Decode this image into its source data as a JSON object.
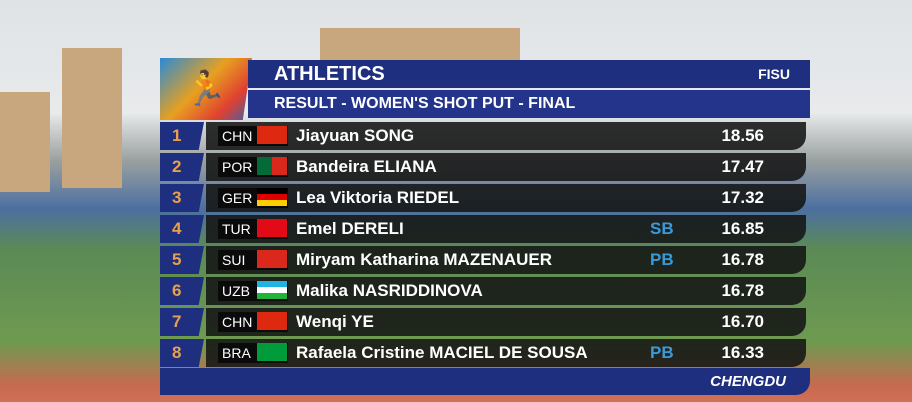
{
  "header": {
    "title": "ATHLETICS",
    "brand": "FISU",
    "subtitle": "RESULT - WOMEN'S SHOT PUT - FINAL",
    "logo_icon": "runner-icon"
  },
  "results": [
    {
      "rank": "1",
      "country": "CHN",
      "name": "Jiayuan SONG",
      "record": "",
      "mark": "18.56",
      "flag": [
        "#de2910",
        "#de2910"
      ]
    },
    {
      "rank": "2",
      "country": "POR",
      "name": "Bandeira ELIANA",
      "record": "",
      "mark": "17.47",
      "flag": [
        "#046a38",
        "#da291c"
      ]
    },
    {
      "rank": "3",
      "country": "GER",
      "name": "Lea Viktoria RIEDEL",
      "record": "",
      "mark": "17.32",
      "flag": [
        "#000000",
        "#dd0000",
        "#ffce00"
      ]
    },
    {
      "rank": "4",
      "country": "TUR",
      "name": "Emel DERELI",
      "record": "SB",
      "mark": "16.85",
      "flag": [
        "#e30a17",
        "#e30a17"
      ]
    },
    {
      "rank": "5",
      "country": "SUI",
      "name": "Miryam Katharina MAZENAUER",
      "record": "PB",
      "mark": "16.78",
      "flag": [
        "#da291c",
        "#da291c"
      ]
    },
    {
      "rank": "6",
      "country": "UZB",
      "name": "Malika NASRIDDINOVA",
      "record": "",
      "mark": "16.78",
      "flag": [
        "#1eb5e5",
        "#ffffff",
        "#1eb53a"
      ]
    },
    {
      "rank": "7",
      "country": "CHN",
      "name": "Wenqi YE",
      "record": "",
      "mark": "16.70",
      "flag": [
        "#de2910",
        "#de2910"
      ]
    },
    {
      "rank": "8",
      "country": "BRA",
      "name": "Rafaela Cristine MACIEL DE SOUSA",
      "record": "PB",
      "mark": "16.33",
      "flag": [
        "#009c3b",
        "#009c3b"
      ]
    }
  ],
  "footer": {
    "location": "CHENGDU"
  }
}
